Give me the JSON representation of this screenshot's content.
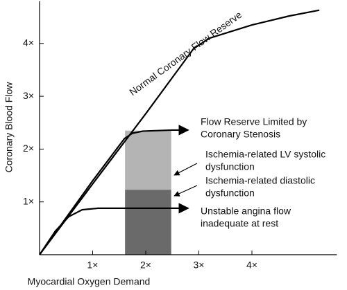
{
  "chart_data": {
    "type": "line",
    "x_label": "Myocardial Oxygen Demand",
    "y_label": "Coronary Blood Flow",
    "xlim": [
      0,
      5.6
    ],
    "ylim": [
      0,
      4.8
    ],
    "xticks": [
      {
        "value": 1,
        "label": "1×"
      },
      {
        "value": 2,
        "label": "2×"
      },
      {
        "value": 3,
        "label": "3×"
      },
      {
        "value": 4,
        "label": "4×"
      }
    ],
    "yticks": [
      {
        "value": 1,
        "label": "1×"
      },
      {
        "value": 2,
        "label": "2×"
      },
      {
        "value": 3,
        "label": "3×"
      },
      {
        "value": 4,
        "label": "4×"
      }
    ],
    "regions": [
      {
        "x": [
          1.61,
          2.48
        ],
        "y": [
          1.23,
          2.35
        ],
        "color": "#b4b4b4"
      },
      {
        "x": [
          1.61,
          2.48
        ],
        "y": [
          0,
          1.23
        ],
        "color": "#6a6a6a"
      }
    ],
    "series": [
      {
        "name": "Normal Coronary Flow Reserve",
        "color": "#000000",
        "x": [
          0,
          1,
          2,
          2.9,
          3.2,
          4,
          4.7,
          5.27
        ],
        "values": [
          0,
          1.34,
          2.67,
          3.9,
          4.1,
          4.35,
          4.52,
          4.63
        ]
      },
      {
        "color": "#000000",
        "x": [
          0,
          1,
          1.6,
          1.75,
          1.95,
          2.5,
          2.8
        ],
        "values": [
          0,
          1.4,
          2.2,
          2.3,
          2.34,
          2.36,
          2.36
        ]
      },
      {
        "color": "#000000",
        "x": [
          0,
          0.3,
          0.55,
          0.8,
          1.1,
          2.0,
          2.8
        ],
        "values": [
          0,
          0.45,
          0.72,
          0.85,
          0.88,
          0.88,
          0.88
        ]
      }
    ],
    "annotations": [
      {
        "lines": [
          "Flow Reserve Limited by",
          "Coronary Stenosis"
        ]
      },
      {
        "lines": [
          "Ischemia-related LV systolic",
          "dysfunction"
        ]
      },
      {
        "lines": [
          "Ischemia-related diastolic",
          "dysfunction"
        ]
      },
      {
        "lines": [
          "Unstable angina flow",
          "inadequate at rest"
        ]
      }
    ]
  }
}
